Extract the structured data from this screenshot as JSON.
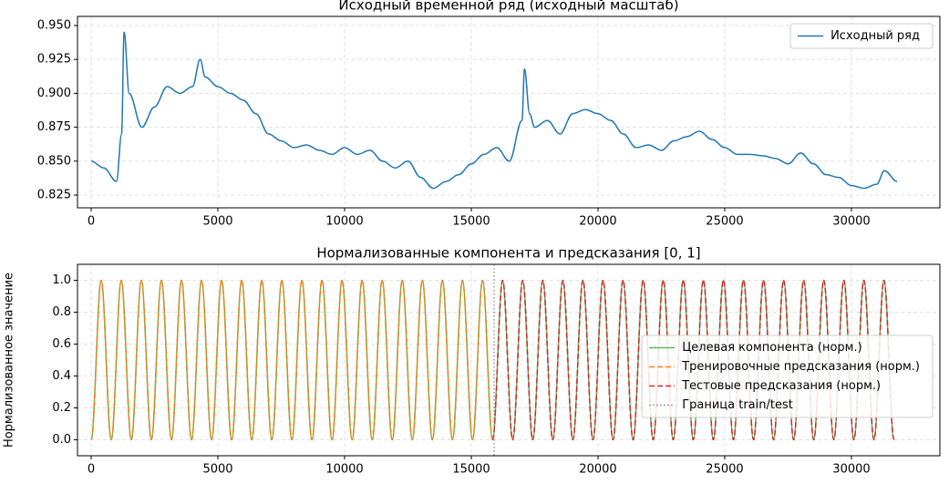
{
  "chart_data": [
    {
      "type": "line",
      "title": "Исходный временной ряд (исходный масштаб)",
      "x": [
        0,
        500,
        1000,
        1200,
        1300,
        1500,
        2000,
        2500,
        3000,
        3500,
        4000,
        4300,
        4500,
        5000,
        5500,
        6000,
        6500,
        7000,
        7500,
        8000,
        8500,
        9000,
        9500,
        10000,
        10500,
        11000,
        11500,
        12000,
        12500,
        13000,
        13500,
        14000,
        14500,
        15000,
        15500,
        16000,
        16500,
        17000,
        17100,
        17300,
        17500,
        18000,
        18500,
        19000,
        19500,
        20000,
        20500,
        21000,
        21500,
        22000,
        22500,
        23000,
        23500,
        24000,
        24500,
        25000,
        25500,
        26000,
        26500,
        27000,
        27500,
        28000,
        28500,
        29000,
        29500,
        30000,
        30500,
        31000,
        31300,
        31800
      ],
      "series": [
        {
          "name": "Исходный ряд",
          "color": "#1f77b4",
          "linestyle": "-",
          "values": [
            0.85,
            0.845,
            0.835,
            0.87,
            0.945,
            0.9,
            0.875,
            0.89,
            0.905,
            0.9,
            0.905,
            0.925,
            0.912,
            0.905,
            0.9,
            0.895,
            0.885,
            0.87,
            0.865,
            0.86,
            0.862,
            0.858,
            0.855,
            0.86,
            0.855,
            0.858,
            0.85,
            0.845,
            0.85,
            0.838,
            0.83,
            0.835,
            0.84,
            0.848,
            0.855,
            0.86,
            0.85,
            0.88,
            0.918,
            0.885,
            0.875,
            0.88,
            0.87,
            0.885,
            0.888,
            0.885,
            0.88,
            0.87,
            0.86,
            0.862,
            0.858,
            0.865,
            0.868,
            0.872,
            0.866,
            0.86,
            0.855,
            0.855,
            0.854,
            0.852,
            0.848,
            0.856,
            0.848,
            0.84,
            0.838,
            0.832,
            0.83,
            0.833,
            0.843,
            0.835
          ]
        }
      ],
      "xlim": [
        -540,
        33490
      ],
      "xticks": [
        0,
        5000,
        10000,
        15000,
        20000,
        25000,
        30000
      ],
      "ylim": [
        0.8156,
        0.9567
      ],
      "yticks": [
        0.825,
        {
          "value": 0.85,
          "label": "0.850"
        },
        0.875,
        {
          "value": 0.9,
          "label": "0.900"
        },
        0.925,
        {
          "value": 0.95,
          "label": "0.950"
        }
      ],
      "grid": true,
      "legend": "upper right"
    },
    {
      "type": "line",
      "title": "Нормализованные компонента и предсказания [0, 1]",
      "ylabel": "Нормализованное значение",
      "x": [
        0,
        396,
        792,
        1188,
        1584,
        1980,
        2376,
        2772,
        3168,
        3564,
        3960,
        4356,
        4752,
        5148,
        5544,
        5940,
        6336,
        6732,
        7128,
        7524,
        7920,
        8316,
        8712,
        9108,
        9504,
        9900,
        10296,
        10692,
        11088,
        11484,
        11880,
        12276,
        12672,
        13068,
        13464,
        13860,
        14256,
        14652,
        15048,
        15444,
        15840,
        16236,
        16632,
        17028,
        17424,
        17820,
        18216,
        18612,
        19008,
        19404,
        19800,
        20196,
        20592,
        20988,
        21384,
        21780,
        22176,
        22572,
        22968,
        23364,
        23760,
        24156,
        24552,
        24948,
        25344,
        25740,
        26136,
        26532,
        26928,
        27324,
        27720,
        28116,
        28512,
        28908,
        29304,
        29700,
        30096,
        30492,
        30888,
        31284,
        31680
      ],
      "series": [
        {
          "name": "Целевая компонента (норм.)",
          "color": "#5cb85c",
          "linestyle": "-",
          "values": [
            0,
            1,
            0,
            1,
            0,
            1,
            0,
            1,
            0,
            1,
            0,
            1,
            0,
            1,
            0,
            1,
            0,
            1,
            0,
            1,
            0,
            1,
            0,
            1,
            0,
            1,
            0,
            1,
            0,
            1,
            0,
            1,
            0,
            1,
            0,
            1,
            0,
            1,
            0,
            1,
            0,
            1,
            0,
            1,
            0,
            1,
            0,
            1,
            0,
            1,
            0,
            1,
            0,
            1,
            0,
            1,
            0,
            1,
            0,
            1,
            0,
            1,
            0,
            1,
            0,
            1,
            0,
            1,
            0,
            1,
            0,
            1,
            0,
            1,
            0,
            1,
            0,
            1,
            0,
            1,
            0
          ]
        },
        {
          "name": "Тренировочные предсказания (норм.)",
          "color": "#ff7f0e",
          "linestyle": "--",
          "values": [
            0,
            1,
            0,
            1,
            0,
            1,
            0,
            1,
            0,
            1,
            0,
            1,
            0,
            1,
            0,
            1,
            0,
            1,
            0,
            1,
            0,
            1,
            0,
            1,
            0,
            1,
            0,
            1,
            0,
            1,
            0,
            1,
            0,
            1,
            0,
            1,
            0,
            1,
            0,
            1,
            0,
            null,
            null,
            null,
            null,
            null,
            null,
            null,
            null,
            null,
            null,
            null,
            null,
            null,
            null,
            null,
            null,
            null,
            null,
            null,
            null,
            null,
            null,
            null,
            null,
            null,
            null,
            null,
            null,
            null,
            null,
            null,
            null,
            null,
            null,
            null,
            null,
            null,
            null,
            null,
            null
          ]
        },
        {
          "name": "Тестовые предсказания (норм.)",
          "color": "#d62728",
          "linestyle": "--",
          "values": [
            null,
            null,
            null,
            null,
            null,
            null,
            null,
            null,
            null,
            null,
            null,
            null,
            null,
            null,
            null,
            null,
            null,
            null,
            null,
            null,
            null,
            null,
            null,
            null,
            null,
            null,
            null,
            null,
            null,
            null,
            null,
            null,
            null,
            null,
            null,
            null,
            null,
            null,
            null,
            null,
            0,
            1,
            0,
            1,
            0,
            1,
            0,
            1,
            0,
            1,
            0,
            1,
            0,
            1,
            0,
            1,
            0,
            1,
            0,
            1,
            0,
            1,
            0,
            1,
            0,
            1,
            0,
            1,
            0,
            1,
            0,
            1,
            0,
            1,
            0,
            1,
            0,
            1,
            0,
            1,
            0
          ]
        }
      ],
      "boundary": {
        "name": "Граница train/test",
        "color": "#808080",
        "linestyle": ":",
        "x": 15900
      },
      "xlim": [
        -540,
        33490
      ],
      "xticks": [
        0,
        5000,
        10000,
        15000,
        20000,
        25000,
        30000
      ],
      "ylim": [
        -0.1,
        1.1
      ],
      "yticks": [
        {
          "value": 0,
          "label": "0.0"
        },
        0.2,
        0.4,
        0.6,
        0.8,
        {
          "value": 1,
          "label": "1.0"
        }
      ],
      "grid": true,
      "legend": "center right"
    }
  ]
}
